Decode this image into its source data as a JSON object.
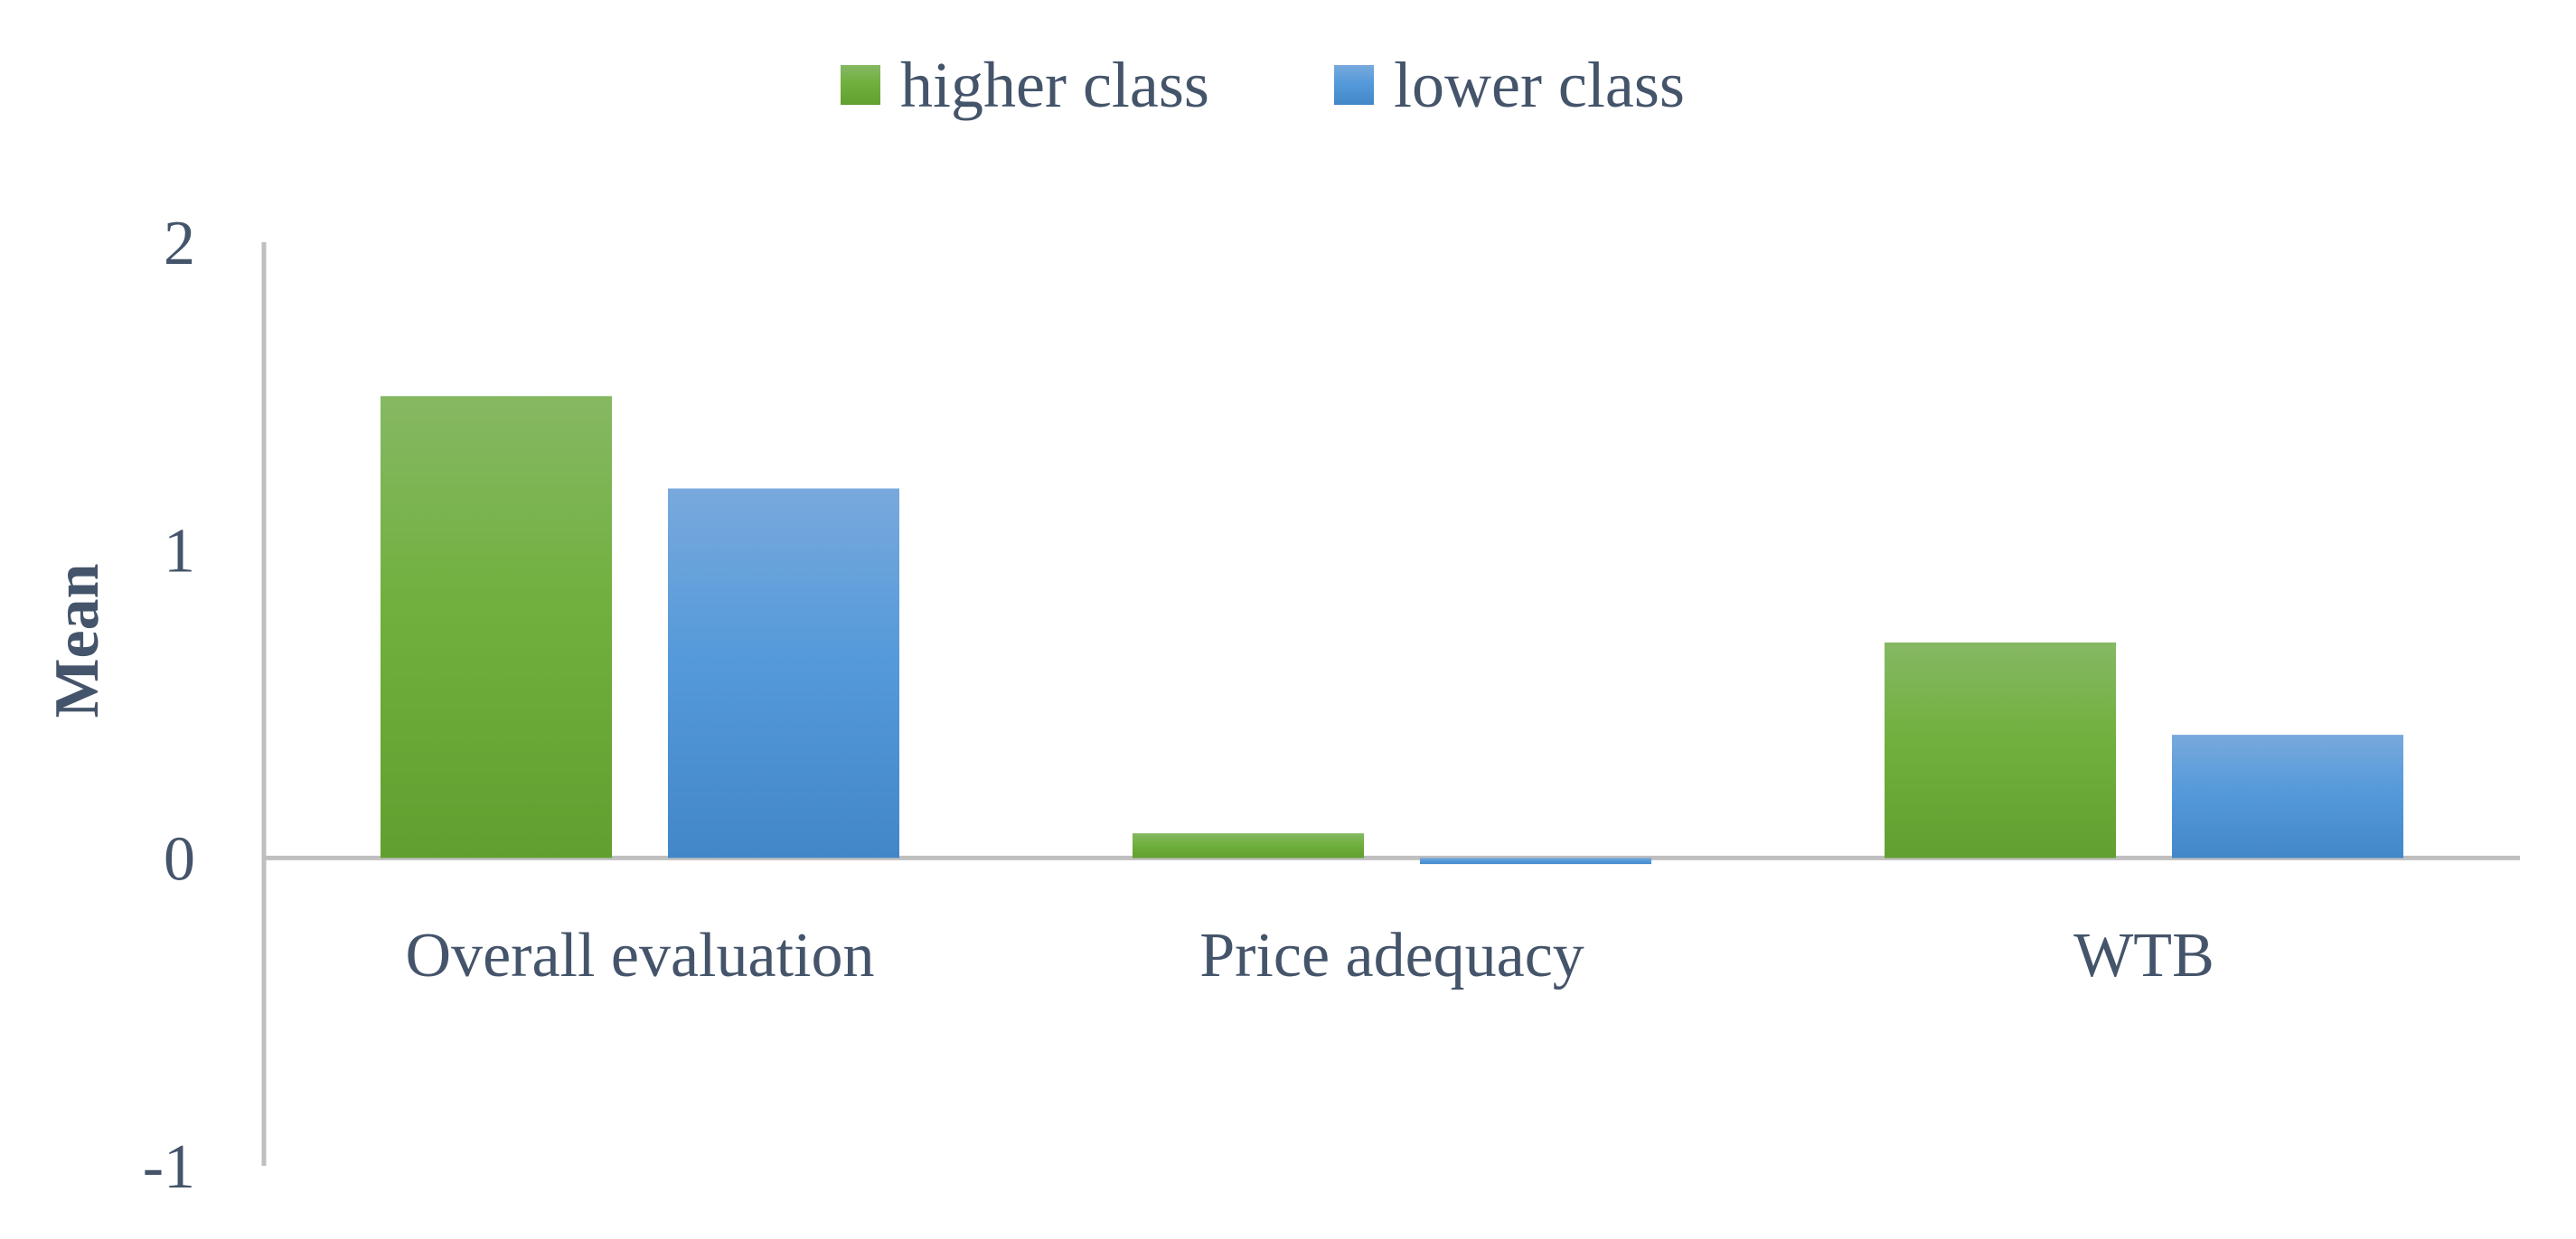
{
  "chart_data": {
    "type": "bar",
    "title": "",
    "xlabel": "",
    "ylabel": "Mean",
    "categories": [
      "Overall evaluation",
      "Price adequacy",
      "WTB"
    ],
    "series": [
      {
        "name": "higher class",
        "values": [
          1.5,
          0.08,
          0.7
        ],
        "color": "#6aac3c"
      },
      {
        "name": "lower class",
        "values": [
          1.2,
          -0.02,
          0.4
        ],
        "color": "#4f94d6"
      }
    ],
    "ylim": [
      -1,
      2
    ],
    "yticks": [
      "2",
      "1",
      "0",
      "-1"
    ],
    "ytick_values": [
      2,
      1,
      0,
      -1
    ],
    "grid": false,
    "legend_position": "top-center"
  }
}
